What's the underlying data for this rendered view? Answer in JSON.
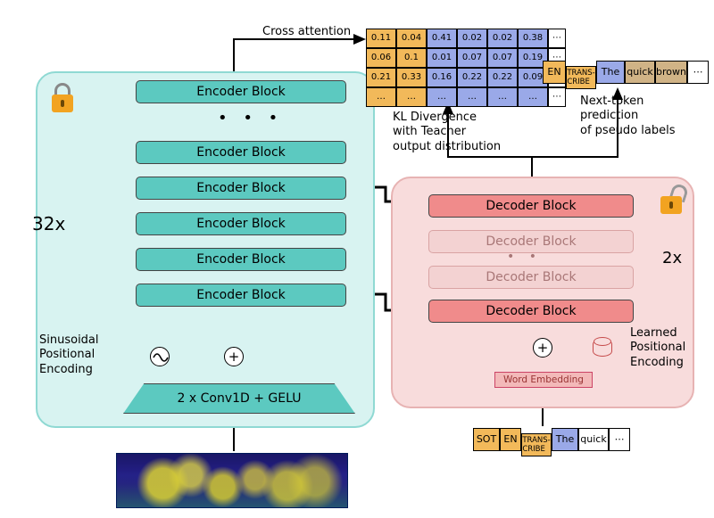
{
  "diagram_type": "flowchart",
  "colors": {
    "encoder_panel_bg": "#d8f3f1",
    "encoder_panel_border": "#8fd9d3",
    "decoder_panel_bg": "#f8dcdc",
    "decoder_panel_border": "#e7b3b3",
    "encoder_block_bg": "#5cc9c0",
    "decoder_block_bg": "#f08b8b",
    "decoder_ghost_bg": "#f3d2d2",
    "token_orange": "#f2b95a",
    "token_blue": "#9aa9e8",
    "token_brown": "#d0b386",
    "lock_body": "#f2a321",
    "lock_shackle": "#888888",
    "text": "#000000"
  },
  "encoder": {
    "multiplier_label": "32x",
    "block_label": "Encoder Block",
    "num_visible_blocks": 6,
    "conv_label": "2 x Conv1D + GELU",
    "pos_enc_label_l1": "Sinusoidal",
    "pos_enc_label_l2": "Positional",
    "pos_enc_label_l3": "Encoding",
    "locked": true
  },
  "decoder": {
    "multiplier_label": "2x",
    "block_label": "Decoder Block",
    "num_visible_blocks": 4,
    "ghost_indices": [
      1,
      2
    ],
    "word_embedding_label": "Word Embedding",
    "pos_enc_label_l1": "Learned",
    "pos_enc_label_l2": "Positional",
    "pos_enc_label_l3": "Encoding",
    "locked": false
  },
  "top_labels": {
    "cross_attention": "Cross attention",
    "kl_l1": "KL Divergence",
    "kl_l2": "with Teacher",
    "kl_l3": "output distribution",
    "next_l1": "Next-token",
    "next_l2": "prediction",
    "next_l3": "of pseudo labels"
  },
  "prob_grid": {
    "cols": 6,
    "col_groups": [
      "or",
      "or",
      "bl",
      "bl",
      "bl",
      "bl"
    ],
    "rows": [
      [
        "0.11",
        "0.04",
        "0.41",
        "0.02",
        "0.02",
        "0.38"
      ],
      [
        "0.06",
        "0.1",
        "0.01",
        "0.07",
        "0.07",
        "0.19"
      ],
      [
        "0.21",
        "0.33",
        "0.16",
        "0.22",
        "0.22",
        "0.09"
      ],
      [
        "…",
        "…",
        "…",
        "…",
        "…",
        "…"
      ]
    ],
    "trailing_ellipsis": "⋯"
  },
  "output_tokens": {
    "items": [
      {
        "text": "EN",
        "cls": "or",
        "w": 26
      },
      {
        "text": "TRANS-\nCRIBE",
        "cls": "or",
        "w": 34
      },
      {
        "text": "The",
        "cls": "bl",
        "w": 32
      },
      {
        "text": "quick",
        "cls": "br",
        "w": 34
      },
      {
        "text": "brown",
        "cls": "br",
        "w": 36
      },
      {
        "text": "⋯",
        "cls": "wh",
        "w": 24
      }
    ]
  },
  "input_tokens": {
    "items": [
      {
        "text": "SOT",
        "cls": "or",
        "w": 30
      },
      {
        "text": "EN",
        "cls": "or",
        "w": 24
      },
      {
        "text": "TRANS-\nCRIBE",
        "cls": "or",
        "w": 34
      },
      {
        "text": "The",
        "cls": "bl",
        "w": 30
      },
      {
        "text": "quick",
        "cls": "wh",
        "w": 34
      },
      {
        "text": "⋯",
        "cls": "wh",
        "w": 24
      }
    ]
  },
  "fonts": {
    "base_size_pt": 11,
    "block_size_pt": 10.5,
    "big_label_pt": 17
  }
}
